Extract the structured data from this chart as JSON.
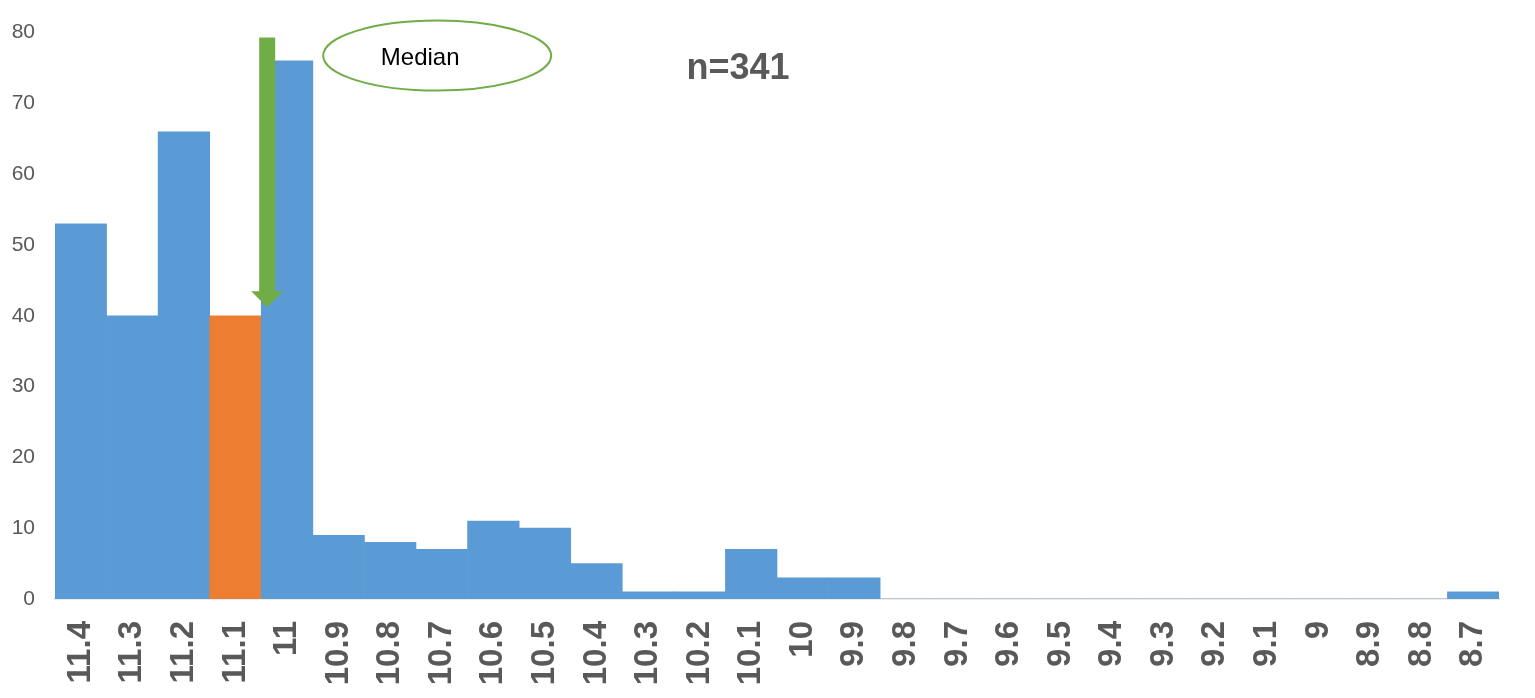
{
  "chart_data": {
    "type": "bar",
    "title": "n=341",
    "categories": [
      "11.4",
      "11.3",
      "11.2",
      "11.1",
      "11",
      "10.9",
      "10.8",
      "10.7",
      "10.6",
      "10.5",
      "10.4",
      "10.3",
      "10.2",
      "10.1",
      "10",
      "9.9",
      "9.8",
      "9.7",
      "9.6",
      "9.5",
      "9.4",
      "9.3",
      "9.2",
      "9.1",
      "9",
      "8.9",
      "8.8",
      "8.7"
    ],
    "values": [
      53,
      40,
      66,
      40,
      76,
      9,
      8,
      7,
      11,
      10,
      5,
      1,
      1,
      7,
      3,
      3,
      0,
      0,
      0,
      0,
      0,
      0,
      0,
      0,
      0,
      0,
      0,
      1
    ],
    "colors": [
      "#5b9bd5",
      "#5b9bd5",
      "#5b9bd5",
      "#ed7d31",
      "#5b9bd5",
      "#5b9bd5",
      "#5b9bd5",
      "#5b9bd5",
      "#5b9bd5",
      "#5b9bd5",
      "#5b9bd5",
      "#5b9bd5",
      "#5b9bd5",
      "#5b9bd5",
      "#5b9bd5",
      "#5b9bd5",
      "#5b9bd5",
      "#5b9bd5",
      "#5b9bd5",
      "#5b9bd5",
      "#5b9bd5",
      "#5b9bd5",
      "#5b9bd5",
      "#5b9bd5",
      "#5b9bd5",
      "#5b9bd5",
      "#5b9bd5",
      "#5b9bd5"
    ],
    "ylim": [
      0,
      80
    ],
    "yticks": [
      0,
      10,
      20,
      30,
      40,
      50,
      60,
      70,
      80
    ],
    "grid": false,
    "legend": false,
    "annotations": [
      "Median"
    ]
  }
}
